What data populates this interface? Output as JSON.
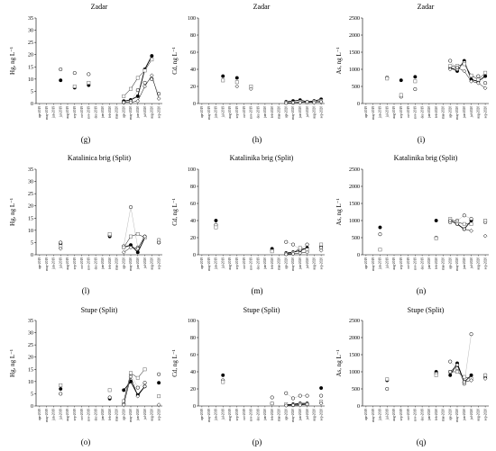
{
  "figure": {
    "months": [
      "apr-2019",
      "may-2019",
      "jun-2019",
      "jul-2019",
      "aug-2019",
      "sep-2019",
      "oct-2019",
      "nov-2019",
      "dec-2019",
      "jan-2020",
      "feb-2020",
      "mar-2020",
      "apr-2020",
      "may-2020",
      "jun-2020",
      "jul-2020",
      "aug-2020",
      "sep-2020"
    ],
    "colors": {
      "axis": "#000000",
      "series_filled": "#000000",
      "series_open": "#ffffff",
      "light_line": "#bbbbbb"
    }
  },
  "chart_data": [
    {
      "panel_id": "g",
      "type": "line",
      "title": "Zadar",
      "ylabel": "Hg, ng L⁻¹",
      "ylim": [
        0,
        35
      ],
      "yticks": [
        0,
        5,
        10,
        15,
        20,
        25,
        30,
        35
      ],
      "series": [
        {
          "marker": "filled-circle",
          "values": [
            null,
            null,
            null,
            9.5,
            null,
            6.5,
            null,
            7.5,
            null,
            null,
            null,
            null,
            1,
            1.5,
            3,
            14,
            19.5,
            null
          ]
        },
        {
          "marker": "open-circle",
          "values": [
            null,
            null,
            null,
            14,
            null,
            12.5,
            null,
            12,
            null,
            null,
            null,
            null,
            0.5,
            1,
            5.5,
            8.5,
            10,
            4
          ]
        },
        {
          "marker": "open-square",
          "values": [
            null,
            null,
            null,
            null,
            null,
            7,
            null,
            8.5,
            null,
            null,
            null,
            null,
            3,
            6,
            10.5,
            13.5,
            18,
            null
          ]
        },
        {
          "marker": "open-diamond",
          "values": [
            null,
            null,
            null,
            null,
            null,
            null,
            null,
            null,
            null,
            null,
            null,
            null,
            0.5,
            0.5,
            1,
            7,
            11.5,
            2
          ]
        }
      ]
    },
    {
      "panel_id": "h",
      "type": "line",
      "title": "Zadar",
      "ylabel": "Cd, ng L⁻¹",
      "ylim": [
        0,
        100
      ],
      "yticks": [
        0,
        20,
        40,
        60,
        80,
        100
      ],
      "series": [
        {
          "marker": "filled-circle",
          "values": [
            null,
            null,
            null,
            32,
            null,
            30,
            null,
            null,
            null,
            null,
            null,
            null,
            2,
            3,
            4,
            2,
            3,
            5
          ]
        },
        {
          "marker": "open-square",
          "values": [
            null,
            null,
            null,
            27,
            null,
            25,
            null,
            20,
            null,
            null,
            null,
            null,
            1,
            1,
            2,
            1,
            2,
            3
          ]
        },
        {
          "marker": "open-diamond",
          "values": [
            null,
            null,
            null,
            null,
            null,
            20,
            null,
            17,
            null,
            null,
            null,
            null,
            0.5,
            1,
            1,
            2,
            1,
            2
          ]
        }
      ]
    },
    {
      "panel_id": "i",
      "type": "line",
      "title": "Zadar",
      "ylabel": "As, ng L⁻¹",
      "ylim": [
        0,
        2500
      ],
      "yticks": [
        0,
        500,
        1000,
        1500,
        2000,
        2500
      ],
      "series": [
        {
          "marker": "filled-circle",
          "values": [
            null,
            null,
            null,
            750,
            null,
            680,
            null,
            780,
            null,
            null,
            null,
            null,
            1050,
            950,
            1250,
            700,
            650,
            800
          ]
        },
        {
          "marker": "open-circle",
          "values": [
            null,
            null,
            null,
            760,
            null,
            200,
            null,
            420,
            null,
            null,
            null,
            null,
            1250,
            1000,
            1200,
            800,
            800,
            600
          ]
        },
        {
          "marker": "open-square",
          "values": [
            null,
            null,
            null,
            730,
            null,
            250,
            null,
            650,
            null,
            null,
            null,
            null,
            1100,
            1100,
            1150,
            820,
            700,
            900
          ]
        },
        {
          "marker": "open-diamond",
          "values": [
            null,
            null,
            null,
            null,
            null,
            null,
            null,
            null,
            null,
            null,
            null,
            null,
            1000,
            1050,
            950,
            650,
            600,
            450
          ]
        }
      ]
    },
    {
      "panel_id": "l",
      "type": "line",
      "title": "Katalinica brig (Split)",
      "ylabel": "Hg, ng L⁻¹",
      "ylim": [
        0,
        35
      ],
      "yticks": [
        0,
        5,
        10,
        15,
        20,
        25,
        30,
        35
      ],
      "series": [
        {
          "marker": "filled-circle",
          "values": [
            null,
            null,
            null,
            4.5,
            null,
            null,
            null,
            null,
            null,
            null,
            7.5,
            null,
            3,
            4,
            1,
            7,
            null,
            6
          ]
        },
        {
          "marker": "open-circle",
          "values": [
            null,
            null,
            null,
            5,
            null,
            null,
            null,
            null,
            null,
            null,
            8,
            null,
            3.5,
            19.5,
            3,
            7.5,
            null,
            5
          ]
        },
        {
          "marker": "open-square",
          "values": [
            null,
            null,
            null,
            3.5,
            null,
            null,
            null,
            null,
            null,
            null,
            8.5,
            null,
            3,
            7.5,
            8.5,
            7,
            null,
            6
          ]
        },
        {
          "marker": "open-diamond",
          "values": [
            null,
            null,
            null,
            2.5,
            null,
            null,
            null,
            null,
            null,
            null,
            null,
            null,
            1,
            3,
            2.5,
            7.5,
            null,
            5
          ]
        }
      ]
    },
    {
      "panel_id": "m",
      "type": "line",
      "title": "Katalinika brig (Split)",
      "ylabel": "Cd, ng L⁻¹",
      "ylim": [
        0,
        100
      ],
      "yticks": [
        0,
        20,
        40,
        60,
        80,
        100
      ],
      "series": [
        {
          "marker": "filled-circle",
          "values": [
            null,
            null,
            40,
            null,
            null,
            null,
            null,
            null,
            null,
            null,
            7,
            null,
            2,
            3,
            5,
            8,
            null,
            10
          ]
        },
        {
          "marker": "open-circle",
          "values": [
            null,
            null,
            35,
            null,
            null,
            null,
            null,
            null,
            null,
            null,
            5,
            null,
            15,
            12,
            6,
            12,
            null,
            8
          ]
        },
        {
          "marker": "open-square",
          "values": [
            null,
            null,
            32,
            null,
            null,
            null,
            null,
            null,
            null,
            null,
            4,
            null,
            1,
            2,
            8,
            6,
            null,
            12
          ]
        },
        {
          "marker": "open-diamond",
          "values": [
            null,
            null,
            null,
            null,
            null,
            null,
            null,
            null,
            null,
            null,
            null,
            null,
            0.5,
            1,
            2,
            3,
            null,
            5
          ]
        }
      ]
    },
    {
      "panel_id": "n",
      "type": "line",
      "title": "Katalinika brig (Split)",
      "ylabel": "As, ng L⁻¹",
      "ylim": [
        0,
        2500
      ],
      "yticks": [
        0,
        500,
        1000,
        1500,
        2000,
        2500
      ],
      "series": [
        {
          "marker": "filled-circle",
          "values": [
            null,
            null,
            800,
            null,
            null,
            null,
            null,
            null,
            null,
            null,
            1000,
            null,
            1000,
            900,
            750,
            1000,
            null,
            1000
          ]
        },
        {
          "marker": "open-circle",
          "values": [
            null,
            null,
            600,
            null,
            null,
            null,
            null,
            null,
            null,
            null,
            500,
            null,
            950,
            1000,
            1150,
            1050,
            null,
            950
          ]
        },
        {
          "marker": "open-square",
          "values": [
            null,
            null,
            150,
            null,
            null,
            null,
            null,
            null,
            null,
            null,
            480,
            null,
            1050,
            950,
            900,
            900,
            null,
            1000
          ]
        },
        {
          "marker": "open-diamond",
          "values": [
            null,
            null,
            null,
            null,
            null,
            null,
            null,
            null,
            null,
            null,
            null,
            null,
            1000,
            900,
            750,
            700,
            null,
            550
          ]
        }
      ]
    },
    {
      "panel_id": "o",
      "type": "line",
      "title": "Stupe (Split)",
      "ylabel": "Hg, ng L⁻¹",
      "ylim": [
        0,
        35
      ],
      "yticks": [
        0,
        5,
        10,
        15,
        20,
        25,
        30,
        35
      ],
      "series": [
        {
          "marker": "filled-circle",
          "values": [
            null,
            null,
            null,
            7,
            null,
            null,
            null,
            null,
            null,
            null,
            3,
            null,
            6.5,
            10,
            4.5,
            8,
            null,
            9.5
          ]
        },
        {
          "marker": "open-circle",
          "values": [
            null,
            null,
            null,
            5,
            null,
            null,
            null,
            null,
            null,
            null,
            3.5,
            null,
            1,
            13,
            7.5,
            9.5,
            null,
            13
          ]
        },
        {
          "marker": "open-square",
          "values": [
            null,
            null,
            null,
            8.5,
            null,
            null,
            null,
            null,
            null,
            null,
            6.5,
            null,
            2,
            13.5,
            11.5,
            15,
            null,
            4
          ]
        },
        {
          "marker": "open-diamond",
          "values": [
            null,
            null,
            null,
            null,
            null,
            null,
            null,
            null,
            null,
            null,
            null,
            null,
            0.5,
            12,
            4,
            8,
            null,
            0.5
          ]
        }
      ]
    },
    {
      "panel_id": "p",
      "type": "line",
      "title": "Stupe (Split)",
      "ylabel": "Cd, ng L⁻¹",
      "ylim": [
        0,
        100
      ],
      "yticks": [
        0,
        20,
        40,
        60,
        80,
        100
      ],
      "series": [
        {
          "marker": "filled-circle",
          "values": [
            null,
            null,
            null,
            36,
            null,
            null,
            null,
            null,
            null,
            null,
            3,
            null,
            1,
            2,
            3,
            3,
            null,
            21
          ]
        },
        {
          "marker": "open-circle",
          "values": [
            null,
            null,
            null,
            30,
            null,
            null,
            null,
            null,
            null,
            null,
            10,
            null,
            15,
            9,
            12,
            12,
            null,
            12
          ]
        },
        {
          "marker": "open-square",
          "values": [
            null,
            null,
            null,
            28,
            null,
            null,
            null,
            null,
            null,
            null,
            3,
            null,
            2,
            1,
            2,
            2,
            null,
            5
          ]
        },
        {
          "marker": "open-diamond",
          "values": [
            null,
            null,
            null,
            null,
            null,
            null,
            null,
            null,
            null,
            null,
            null,
            null,
            0.5,
            1,
            1,
            2,
            null,
            3
          ]
        }
      ]
    },
    {
      "panel_id": "q",
      "type": "line",
      "title": "Stupe (Split)",
      "ylabel": "As, ng L⁻¹",
      "ylim": [
        0,
        2500
      ],
      "yticks": [
        0,
        500,
        1000,
        1500,
        2000,
        2500
      ],
      "series": [
        {
          "marker": "filled-circle",
          "values": [
            null,
            null,
            null,
            750,
            null,
            null,
            null,
            null,
            null,
            null,
            1000,
            null,
            900,
            1250,
            700,
            900,
            null,
            850
          ]
        },
        {
          "marker": "open-circle",
          "values": [
            null,
            null,
            null,
            500,
            null,
            null,
            null,
            null,
            null,
            null,
            950,
            null,
            1300,
            1100,
            650,
            2100,
            null,
            900
          ]
        },
        {
          "marker": "open-square",
          "values": [
            null,
            null,
            null,
            780,
            null,
            null,
            null,
            null,
            null,
            null,
            900,
            null,
            1000,
            1000,
            850,
            800,
            null,
            900
          ]
        },
        {
          "marker": "open-diamond",
          "values": [
            null,
            null,
            null,
            null,
            null,
            null,
            null,
            null,
            null,
            null,
            null,
            null,
            1000,
            1200,
            700,
            750,
            null,
            800
          ]
        }
      ]
    }
  ]
}
